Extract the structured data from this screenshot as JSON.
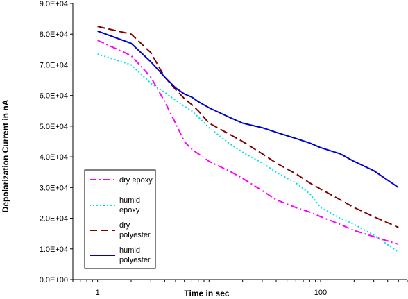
{
  "chart_data": {
    "type": "line",
    "xlabel": "Time in sec",
    "ylabel": "Depolarization Current in nA",
    "x_scale": "log",
    "xlim": [
      0.6,
      600
    ],
    "ylim": [
      0,
      90000
    ],
    "grid": false,
    "legend_position": "lower-left",
    "x_tick_labels": [
      "1",
      "100"
    ],
    "y_tick_labels": [
      "0.0E+00",
      "1.0E+04",
      "2.0E+04",
      "3.0E+04",
      "4.0E+04",
      "5.0E+04",
      "6.0E+04",
      "7.0E+04",
      "8.0E+04",
      "9.0E+04"
    ],
    "series": [
      {
        "name": "dry epoxy",
        "color": "#ff00ff",
        "dash": "dash-dot",
        "x": [
          1,
          2,
          3,
          4,
          5,
          6,
          7,
          8,
          10,
          15,
          20,
          30,
          40,
          60,
          80,
          100,
          150,
          200,
          300,
          500
        ],
        "y": [
          78000,
          73000,
          66000,
          58000,
          51000,
          45000,
          42500,
          41000,
          38500,
          35500,
          33000,
          29000,
          26000,
          23500,
          22000,
          20500,
          18000,
          16000,
          14000,
          11500
        ]
      },
      {
        "name": "humid epoxy",
        "color": "#00e5ee",
        "dash": "dotted",
        "x": [
          1,
          2,
          3,
          4,
          5,
          6,
          7,
          8,
          10,
          15,
          20,
          30,
          40,
          60,
          80,
          100,
          150,
          200,
          300,
          500
        ],
        "y": [
          73500,
          70000,
          64000,
          61000,
          58500,
          56500,
          55000,
          53000,
          49500,
          44500,
          41500,
          38000,
          35000,
          31500,
          28000,
          23500,
          20000,
          18000,
          14500,
          9000
        ]
      },
      {
        "name": "dry polyester",
        "color": "#800000",
        "dash": "dashed",
        "x": [
          1,
          2,
          3,
          4,
          5,
          6,
          7,
          8,
          10,
          15,
          20,
          30,
          40,
          60,
          80,
          100,
          150,
          200,
          300,
          500
        ],
        "y": [
          82500,
          80000,
          74000,
          66000,
          62000,
          59000,
          57000,
          55000,
          51000,
          47500,
          45000,
          41000,
          38000,
          34500,
          31500,
          29500,
          26000,
          23500,
          20500,
          17000
        ]
      },
      {
        "name": "humid polyester",
        "color": "#0000cc",
        "dash": "solid",
        "x": [
          1,
          2,
          3,
          4,
          5,
          6,
          7,
          8,
          10,
          15,
          20,
          30,
          40,
          60,
          80,
          100,
          150,
          200,
          300,
          500
        ],
        "y": [
          81000,
          77000,
          71000,
          66000,
          62500,
          60500,
          59500,
          58000,
          56000,
          53000,
          51000,
          49500,
          48000,
          46000,
          44500,
          43000,
          41000,
          38500,
          35500,
          30000
        ]
      }
    ]
  }
}
